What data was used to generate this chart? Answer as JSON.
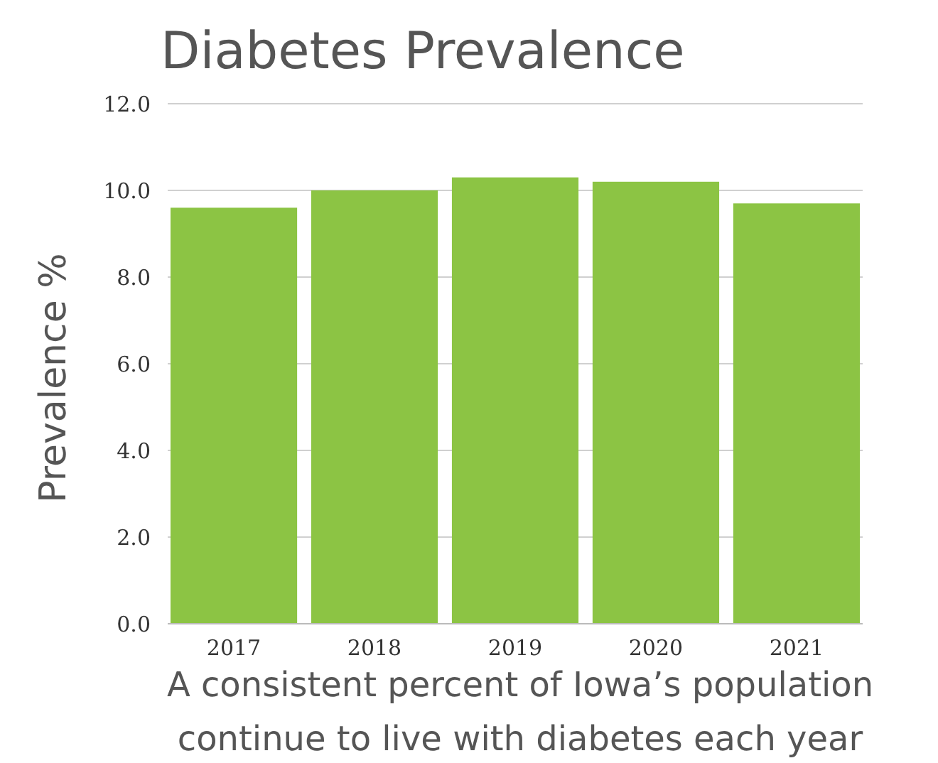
{
  "chart_data": {
    "type": "bar",
    "title": "Diabetes Prevalence",
    "ylabel": "Prevalence %",
    "xlabel": "A consistent percent of Iowa’s population continue to live with diabetes each year",
    "categories": [
      "2017",
      "2018",
      "2019",
      "2020",
      "2021"
    ],
    "values": [
      9.6,
      10.0,
      10.3,
      10.2,
      9.7
    ],
    "color": "#8cc444",
    "ylim": [
      0,
      12
    ],
    "yticks": [
      {
        "value": 0,
        "label": "0.0"
      },
      {
        "value": 2,
        "label": "2.0"
      },
      {
        "value": 4,
        "label": "4.0"
      },
      {
        "value": 6,
        "label": "6.0"
      },
      {
        "value": 8,
        "label": "8.0"
      },
      {
        "value": 10,
        "label": "10.0"
      },
      {
        "value": 12,
        "label": "12.0"
      }
    ],
    "grid": "y"
  }
}
